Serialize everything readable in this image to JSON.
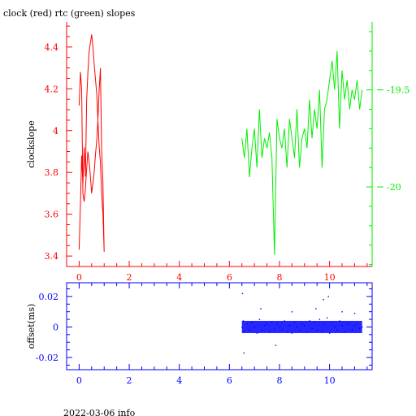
{
  "title": "clock (red) rtc (green) slopes",
  "footer": "2022-03-06 info",
  "colors": {
    "clock": "#ff0000",
    "rtc": "#00ee00",
    "offset": "#0000ff",
    "axis": "#000000"
  },
  "chart_data": [
    {
      "type": "line",
      "title": "clock (red) rtc (green) slopes",
      "ylabel": "clockslope",
      "xlim": [
        -0.5,
        11.7
      ],
      "ylim": [
        3.35,
        4.52
      ],
      "x_ticks": [
        0,
        2,
        4,
        6,
        8,
        10
      ],
      "x_tick_labels": [
        "0",
        "2",
        "4",
        "6",
        "8",
        "10"
      ],
      "y_ticks": [
        3.4,
        3.6,
        3.8,
        4,
        4.2,
        4.4
      ],
      "y_tick_labels": [
        "3.4",
        "3.6",
        "3.8",
        "4",
        "4.2",
        "4.4"
      ],
      "y2lim": [
        -20.41,
        -19.15
      ],
      "y2_ticks": [
        -20,
        -19.5
      ],
      "y2_tick_labels": [
        "-20",
        "-19.5"
      ],
      "series": [
        {
          "axis": "left",
          "color": "#ff0000",
          "x": [
            0.0,
            0.05,
            0.1,
            0.15,
            0.2,
            0.25,
            0.3,
            0.35,
            0.4,
            0.45,
            0.5,
            0.55,
            0.6,
            0.65,
            0.7,
            0.75,
            0.8,
            0.85,
            0.9,
            0.95,
            1.0,
            0.95,
            0.9,
            0.85,
            0.8,
            0.75,
            0.7,
            0.65,
            0.6,
            0.55,
            0.5,
            0.45,
            0.4,
            0.35,
            0.3,
            0.25,
            0.2,
            0.15,
            0.1,
            0.05,
            0.0
          ],
          "y": [
            3.43,
            3.65,
            3.88,
            3.74,
            3.92,
            3.78,
            4.15,
            4.28,
            4.38,
            4.42,
            4.46,
            4.4,
            4.32,
            4.25,
            4.18,
            4.05,
            3.92,
            3.85,
            3.7,
            3.6,
            3.42,
            3.75,
            3.9,
            4.3,
            4.2,
            4.05,
            3.95,
            3.88,
            3.8,
            3.75,
            3.7,
            3.78,
            3.85,
            3.9,
            3.82,
            3.72,
            3.66,
            3.7,
            4.2,
            4.28,
            4.12
          ]
        },
        {
          "axis": "right",
          "color": "#00ee00",
          "x": [
            6.5,
            6.6,
            6.7,
            6.8,
            6.9,
            7.0,
            7.1,
            7.2,
            7.3,
            7.4,
            7.5,
            7.6,
            7.7,
            7.8,
            7.9,
            8.0,
            8.1,
            8.2,
            8.3,
            8.4,
            8.5,
            8.6,
            8.7,
            8.8,
            8.9,
            9.0,
            9.1,
            9.2,
            9.3,
            9.4,
            9.5,
            9.6,
            9.7,
            9.8,
            9.9,
            10.0,
            10.1,
            10.2,
            10.3,
            10.4,
            10.5,
            10.6,
            10.7,
            10.8,
            10.9,
            11.0,
            11.1,
            11.2,
            11.3
          ],
          "y": [
            -19.75,
            -19.85,
            -19.7,
            -19.95,
            -19.8,
            -19.7,
            -19.9,
            -19.6,
            -19.85,
            -19.75,
            -19.8,
            -19.72,
            -19.85,
            -20.35,
            -19.65,
            -19.75,
            -19.8,
            -19.7,
            -19.9,
            -19.65,
            -19.75,
            -19.85,
            -19.6,
            -19.9,
            -19.75,
            -19.7,
            -19.8,
            -19.55,
            -19.75,
            -19.6,
            -19.7,
            -19.5,
            -19.9,
            -19.6,
            -19.55,
            -19.45,
            -19.35,
            -19.5,
            -19.3,
            -19.7,
            -19.4,
            -19.55,
            -19.45,
            -19.6,
            -19.5,
            -19.55,
            -19.45,
            -19.6,
            -19.5
          ]
        }
      ]
    },
    {
      "type": "scatter",
      "ylabel": "offset(ms)",
      "xlim": [
        -0.5,
        11.7
      ],
      "ylim": [
        -0.028,
        0.029
      ],
      "x_ticks": [
        0,
        2,
        4,
        6,
        8,
        10
      ],
      "x_tick_labels": [
        "0",
        "2",
        "4",
        "6",
        "8",
        "10"
      ],
      "y_ticks": [
        -0.02,
        0,
        0.02
      ],
      "y_tick_labels": [
        "-0.02",
        "0",
        "0.02"
      ],
      "series": [
        {
          "color": "#0000ff",
          "x": [
            6.5,
            6.55,
            6.6,
            6.7,
            6.8,
            6.9,
            7.0,
            7.1,
            7.2,
            7.3,
            7.4,
            7.5,
            7.6,
            7.7,
            7.8,
            7.9,
            8.0,
            8.1,
            8.2,
            8.3,
            8.4,
            8.5,
            8.6,
            8.7,
            8.8,
            8.9,
            9.0,
            9.1,
            9.2,
            9.3,
            9.4,
            9.5,
            9.6,
            9.7,
            9.8,
            9.9,
            10.0,
            10.1,
            10.2,
            10.3,
            10.4,
            10.5,
            10.6,
            10.7,
            10.8,
            10.9,
            11.0,
            11.1,
            11.2,
            11.3,
            6.52,
            6.58,
            7.25,
            7.85,
            8.5,
            9.45,
            9.75,
            9.95,
            10.5,
            11.0
          ],
          "y": [
            0.0,
            0.004,
            -0.003,
            0.002,
            -0.002,
            0.003,
            0.0,
            -0.004,
            0.005,
            -0.002,
            0.001,
            0.002,
            -0.003,
            0.003,
            -0.001,
            0.002,
            0.0,
            -0.002,
            0.004,
            -0.003,
            0.001,
            -0.004,
            0.003,
            0.0,
            -0.002,
            0.002,
            0.001,
            -0.003,
            0.004,
            -0.001,
            0.003,
            -0.002,
            0.005,
            -0.003,
            0.002,
            0.006,
            -0.004,
            0.003,
            0.0,
            -0.002,
            0.004,
            0.001,
            -0.003,
            0.002,
            0.003,
            -0.002,
            0.001,
            0.002,
            -0.001,
            0.0,
            0.022,
            -0.017,
            0.012,
            -0.012,
            0.01,
            0.012,
            0.018,
            0.02,
            0.01,
            0.009
          ]
        }
      ]
    }
  ]
}
